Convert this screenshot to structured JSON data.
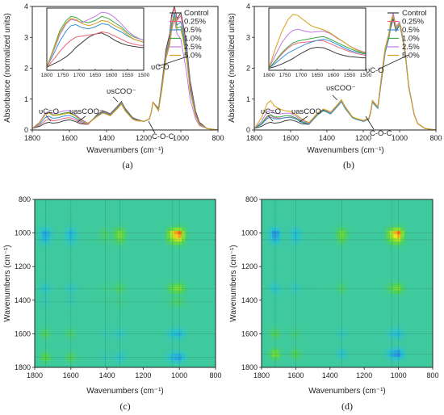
{
  "figure": {
    "captions": [
      "(a)",
      "(b)",
      "(c)",
      "(d)"
    ]
  },
  "colors": {
    "control": "#3c3c3c",
    "s025": "#e8667a",
    "s05": "#3a8fd8",
    "s10": "#39a845",
    "s25": "#c27ae0",
    "s50": "#d8a014"
  },
  "chart_data": [
    {
      "type": "line",
      "panel": "(a)",
      "xlabel": "Wavenumbers (cm⁻¹)",
      "ylabel": "Absorbance (normalized units)",
      "xlim": [
        1800,
        800
      ],
      "ylim": [
        0,
        4
      ],
      "xticks": [
        "1800",
        "1600",
        "1400",
        "1200",
        "1000",
        "800"
      ],
      "yticks": [
        "0",
        "1",
        "2",
        "3",
        "4"
      ],
      "legend": [
        "Control",
        "0.25%",
        "0.5%",
        "1.0%",
        "2.5%",
        "5.0%"
      ],
      "x": [
        1800,
        1760,
        1730,
        1710,
        1690,
        1660,
        1630,
        1600,
        1570,
        1540,
        1500,
        1450,
        1420,
        1400,
        1380,
        1340,
        1320,
        1300,
        1260,
        1240,
        1200,
        1170,
        1160,
        1150,
        1120,
        1100,
        1080,
        1060,
        1050,
        1035,
        1020,
        1000,
        990,
        970,
        950,
        920,
        900,
        860,
        800
      ],
      "series": [
        {
          "name": "Control",
          "values": [
            0.05,
            0.12,
            0.22,
            0.25,
            0.22,
            0.24,
            0.3,
            0.33,
            0.28,
            0.2,
            0.18,
            0.5,
            0.62,
            0.58,
            0.52,
            0.78,
            0.92,
            0.7,
            0.4,
            0.35,
            0.28,
            0.35,
            0.55,
            0.9,
            0.7,
            1.6,
            2.6,
            3.1,
            3.7,
            4.0,
            3.6,
            3.8,
            3.5,
            2.8,
            1.6,
            0.6,
            0.25,
            0.05,
            0.0
          ]
        },
        {
          "name": "0.25%",
          "values": [
            0.05,
            0.16,
            0.3,
            0.35,
            0.3,
            0.32,
            0.38,
            0.4,
            0.34,
            0.24,
            0.18,
            0.48,
            0.6,
            0.56,
            0.5,
            0.76,
            0.9,
            0.68,
            0.38,
            0.33,
            0.28,
            0.35,
            0.55,
            0.9,
            0.68,
            1.55,
            2.5,
            3.0,
            3.6,
            3.95,
            3.55,
            3.7,
            3.4,
            2.7,
            1.5,
            0.55,
            0.22,
            0.05,
            0.0
          ]
        },
        {
          "name": "0.5%",
          "values": [
            0.05,
            0.2,
            0.4,
            0.45,
            0.38,
            0.4,
            0.45,
            0.47,
            0.4,
            0.28,
            0.2,
            0.47,
            0.58,
            0.54,
            0.49,
            0.74,
            0.88,
            0.66,
            0.37,
            0.32,
            0.28,
            0.35,
            0.55,
            0.9,
            0.66,
            1.5,
            2.45,
            2.9,
            3.4,
            3.8,
            3.4,
            3.5,
            3.25,
            2.6,
            1.4,
            0.5,
            0.2,
            0.05,
            0.0
          ]
        },
        {
          "name": "1.0%",
          "values": [
            0.05,
            0.25,
            0.52,
            0.58,
            0.48,
            0.5,
            0.55,
            0.57,
            0.48,
            0.34,
            0.22,
            0.45,
            0.56,
            0.52,
            0.47,
            0.72,
            0.86,
            0.64,
            0.36,
            0.31,
            0.28,
            0.35,
            0.55,
            0.9,
            0.64,
            1.45,
            2.4,
            2.85,
            3.3,
            3.7,
            3.3,
            3.35,
            3.1,
            2.45,
            1.3,
            0.46,
            0.18,
            0.05,
            0.0
          ]
        },
        {
          "name": "2.5%",
          "values": [
            0.05,
            0.26,
            0.55,
            0.6,
            0.52,
            0.56,
            0.62,
            0.63,
            0.52,
            0.36,
            0.22,
            0.44,
            0.55,
            0.51,
            0.46,
            0.7,
            0.84,
            0.62,
            0.35,
            0.3,
            0.28,
            0.35,
            0.55,
            0.9,
            0.62,
            1.4,
            2.3,
            2.75,
            3.2,
            3.6,
            3.1,
            2.95,
            2.6,
            1.9,
            1.0,
            0.35,
            0.14,
            0.05,
            0.0
          ]
        },
        {
          "name": "5.0%",
          "values": [
            0.05,
            0.24,
            0.5,
            0.55,
            0.47,
            0.48,
            0.52,
            0.54,
            0.46,
            0.32,
            0.21,
            0.44,
            0.55,
            0.51,
            0.46,
            0.7,
            0.84,
            0.62,
            0.35,
            0.3,
            0.28,
            0.35,
            0.55,
            0.9,
            0.62,
            1.4,
            2.35,
            2.8,
            3.25,
            3.65,
            3.25,
            3.25,
            3.0,
            2.35,
            1.25,
            0.45,
            0.17,
            0.05,
            0.0
          ]
        }
      ],
      "inset": {
        "xlim": [
          1800,
          1500
        ],
        "ylim": [
          0,
          0.6
        ],
        "xticks": [
          "1800",
          "1750",
          "1700",
          "1650",
          "1600",
          "1550",
          "1500"
        ],
        "x": [
          1800,
          1780,
          1760,
          1740,
          1725,
          1710,
          1690,
          1670,
          1650,
          1630,
          1610,
          1590,
          1570,
          1550,
          1530,
          1510,
          1500
        ],
        "series": [
          {
            "name": "Control",
            "values": [
              0.03,
              0.06,
              0.09,
              0.13,
              0.17,
              0.22,
              0.27,
              0.32,
              0.35,
              0.36,
              0.33,
              0.29,
              0.26,
              0.24,
              0.23,
              0.22,
              0.22
            ]
          },
          {
            "name": "0.25%",
            "values": [
              0.03,
              0.1,
              0.18,
              0.25,
              0.29,
              0.32,
              0.33,
              0.34,
              0.35,
              0.37,
              0.36,
              0.33,
              0.3,
              0.27,
              0.25,
              0.24,
              0.24
            ]
          },
          {
            "name": "0.5%",
            "values": [
              0.03,
              0.15,
              0.28,
              0.38,
              0.43,
              0.44,
              0.41,
              0.4,
              0.42,
              0.45,
              0.44,
              0.4,
              0.37,
              0.33,
              0.3,
              0.28,
              0.27
            ]
          },
          {
            "name": "1.0%",
            "values": [
              0.03,
              0.2,
              0.38,
              0.48,
              0.52,
              0.51,
              0.47,
              0.46,
              0.48,
              0.52,
              0.5,
              0.46,
              0.42,
              0.36,
              0.32,
              0.3,
              0.29
            ]
          },
          {
            "name": "2.5%",
            "values": [
              0.03,
              0.18,
              0.34,
              0.45,
              0.49,
              0.48,
              0.46,
              0.49,
              0.52,
              0.56,
              0.55,
              0.51,
              0.45,
              0.38,
              0.33,
              0.3,
              0.29
            ]
          },
          {
            "name": "5.0%",
            "values": [
              0.03,
              0.19,
              0.36,
              0.46,
              0.5,
              0.49,
              0.45,
              0.43,
              0.45,
              0.48,
              0.47,
              0.43,
              0.4,
              0.34,
              0.3,
              0.28,
              0.27
            ]
          }
        ]
      },
      "annotations": [
        "υC=O",
        "υasCOO⁻",
        "υsCOO⁻",
        "υC-O",
        "C-O-C"
      ]
    },
    {
      "type": "line",
      "panel": "(b)",
      "xlabel": "Wavenumbers (cm⁻¹)",
      "ylabel": "Absorbance (normalized units)",
      "xlim": [
        1800,
        800
      ],
      "ylim": [
        0,
        4
      ],
      "xticks": [
        "1800",
        "1600",
        "1400",
        "1200",
        "1000",
        "800"
      ],
      "yticks": [
        "0",
        "1",
        "2",
        "3",
        "4"
      ],
      "legend": [
        "Control",
        "0.25%",
        "0.5%",
        "1.0%",
        "2.5%",
        "5.0%"
      ],
      "x": [
        1800,
        1760,
        1730,
        1710,
        1690,
        1660,
        1630,
        1600,
        1570,
        1540,
        1500,
        1450,
        1420,
        1400,
        1380,
        1340,
        1320,
        1300,
        1260,
        1240,
        1200,
        1170,
        1160,
        1150,
        1120,
        1100,
        1080,
        1060,
        1050,
        1035,
        1020,
        1000,
        990,
        970,
        950,
        920,
        900,
        860,
        800
      ],
      "series": [
        {
          "name": "Control",
          "values": [
            0.05,
            0.12,
            0.22,
            0.25,
            0.22,
            0.24,
            0.3,
            0.33,
            0.28,
            0.2,
            0.18,
            0.5,
            0.62,
            0.58,
            0.52,
            0.78,
            0.92,
            0.7,
            0.4,
            0.35,
            0.28,
            0.35,
            0.55,
            0.9,
            0.7,
            1.6,
            2.5,
            2.95,
            3.3,
            3.6,
            3.2,
            3.4,
            3.15,
            2.5,
            1.4,
            0.5,
            0.2,
            0.05,
            0.0
          ]
        },
        {
          "name": "0.25%",
          "values": [
            0.05,
            0.2,
            0.4,
            0.48,
            0.4,
            0.38,
            0.4,
            0.42,
            0.36,
            0.26,
            0.19,
            0.52,
            0.64,
            0.6,
            0.54,
            0.8,
            0.94,
            0.72,
            0.41,
            0.36,
            0.29,
            0.36,
            0.56,
            0.92,
            0.72,
            1.65,
            2.55,
            3.0,
            3.4,
            3.75,
            3.3,
            3.45,
            3.2,
            2.55,
            1.42,
            0.5,
            0.2,
            0.05,
            0.0
          ]
        },
        {
          "name": "0.5%",
          "values": [
            0.05,
            0.18,
            0.36,
            0.42,
            0.36,
            0.36,
            0.4,
            0.41,
            0.35,
            0.25,
            0.19,
            0.5,
            0.62,
            0.58,
            0.52,
            0.78,
            0.92,
            0.7,
            0.4,
            0.35,
            0.28,
            0.35,
            0.55,
            0.9,
            0.7,
            1.6,
            2.5,
            2.95,
            3.35,
            3.7,
            3.25,
            3.4,
            3.15,
            2.5,
            1.4,
            0.5,
            0.2,
            0.05,
            0.0
          ]
        },
        {
          "name": "1.0%",
          "values": [
            0.05,
            0.22,
            0.44,
            0.5,
            0.42,
            0.42,
            0.46,
            0.46,
            0.39,
            0.28,
            0.2,
            0.52,
            0.64,
            0.6,
            0.54,
            0.8,
            0.94,
            0.72,
            0.41,
            0.36,
            0.29,
            0.36,
            0.56,
            0.92,
            0.72,
            1.65,
            2.55,
            3.0,
            3.4,
            3.75,
            3.3,
            3.45,
            3.2,
            2.55,
            1.42,
            0.5,
            0.2,
            0.05,
            0.0
          ]
        },
        {
          "name": "2.5%",
          "values": [
            0.05,
            0.28,
            0.58,
            0.64,
            0.54,
            0.52,
            0.54,
            0.54,
            0.45,
            0.32,
            0.22,
            0.54,
            0.66,
            0.62,
            0.56,
            0.82,
            0.96,
            0.74,
            0.42,
            0.37,
            0.3,
            0.37,
            0.57,
            0.94,
            0.74,
            1.7,
            2.6,
            3.05,
            3.45,
            3.8,
            3.35,
            3.5,
            3.25,
            2.6,
            1.45,
            0.52,
            0.21,
            0.05,
            0.0
          ]
        },
        {
          "name": "5.0%",
          "values": [
            0.05,
            0.4,
            0.85,
            0.95,
            0.78,
            0.68,
            0.62,
            0.6,
            0.5,
            0.36,
            0.24,
            0.56,
            0.68,
            0.64,
            0.58,
            0.84,
            0.98,
            0.76,
            0.43,
            0.38,
            0.31,
            0.38,
            0.58,
            0.96,
            0.76,
            1.75,
            2.65,
            3.1,
            3.5,
            3.7,
            3.3,
            3.45,
            3.2,
            2.55,
            1.42,
            0.5,
            0.2,
            0.05,
            0.0
          ]
        }
      ],
      "inset": {
        "xlim": [
          1800,
          1500
        ],
        "ylim": [
          0,
          1.0
        ],
        "xticks": [
          "1800",
          "1750",
          "1700",
          "1650",
          "1600",
          "1550",
          "1500"
        ],
        "x": [
          1800,
          1780,
          1760,
          1740,
          1725,
          1710,
          1690,
          1670,
          1650,
          1630,
          1610,
          1590,
          1570,
          1550,
          1530,
          1510,
          1500
        ],
        "series": [
          {
            "name": "Control",
            "values": [
              0.03,
              0.06,
              0.1,
              0.15,
              0.19,
              0.24,
              0.3,
              0.35,
              0.37,
              0.36,
              0.32,
              0.27,
              0.24,
              0.22,
              0.21,
              0.2,
              0.2
            ]
          },
          {
            "name": "0.25%",
            "values": [
              0.03,
              0.14,
              0.26,
              0.36,
              0.41,
              0.44,
              0.45,
              0.46,
              0.48,
              0.47,
              0.43,
              0.38,
              0.34,
              0.3,
              0.27,
              0.25,
              0.24
            ]
          },
          {
            "name": "0.5%",
            "values": [
              0.03,
              0.11,
              0.2,
              0.28,
              0.32,
              0.36,
              0.41,
              0.45,
              0.48,
              0.5,
              0.47,
              0.42,
              0.37,
              0.32,
              0.29,
              0.27,
              0.26
            ]
          },
          {
            "name": "1.0%",
            "values": [
              0.03,
              0.15,
              0.28,
              0.38,
              0.44,
              0.47,
              0.49,
              0.51,
              0.53,
              0.54,
              0.5,
              0.45,
              0.4,
              0.35,
              0.31,
              0.28,
              0.27
            ]
          },
          {
            "name": "2.5%",
            "values": [
              0.03,
              0.24,
              0.44,
              0.58,
              0.64,
              0.66,
              0.63,
              0.61,
              0.62,
              0.63,
              0.59,
              0.52,
              0.46,
              0.39,
              0.34,
              0.3,
              0.29
            ]
          },
          {
            "name": "5.0%",
            "values": [
              0.03,
              0.34,
              0.62,
              0.82,
              0.9,
              0.88,
              0.8,
              0.72,
              0.68,
              0.65,
              0.6,
              0.53,
              0.46,
              0.39,
              0.33,
              0.29,
              0.28
            ]
          }
        ]
      },
      "annotations": [
        "υC=O",
        "υasCOO⁻",
        "υsCOO⁻",
        "υC-O",
        "C-O-C"
      ]
    },
    {
      "type": "heatmap",
      "panel": "(c)",
      "xlabel": "Wavenumbers (cm⁻¹)",
      "ylabel": "Wavenumbers (cm⁻¹)",
      "xlim": [
        1800,
        800
      ],
      "ylim": [
        800,
        1800
      ],
      "xticks": [
        "1800",
        "1600",
        "1400",
        "1200",
        "1000",
        "800"
      ],
      "yticks": [
        "800",
        "1000",
        "1200",
        "1400",
        "1600",
        "1800"
      ],
      "bands": [
        1740,
        1600,
        1410,
        1330,
        1040,
        1000
      ],
      "band_weights": [
        -0.55,
        -0.4,
        0.15,
        0.45,
        0.6,
        1.0
      ]
    },
    {
      "type": "heatmap",
      "panel": "(d)",
      "xlabel": "Wavenumbers (cm⁻¹)",
      "ylabel": "Wavenumbers (cm⁻¹)",
      "xlim": [
        1800,
        800
      ],
      "ylim": [
        800,
        1800
      ],
      "xticks": [
        "1800",
        "1600",
        "1400",
        "1200",
        "1000",
        "800"
      ],
      "yticks": [
        "800",
        "1000",
        "1200",
        "1400",
        "1600",
        "1800"
      ],
      "bands": [
        1720,
        1600,
        1330,
        1040,
        1000
      ],
      "band_weights": [
        -0.7,
        -0.35,
        0.4,
        0.55,
        1.0
      ]
    }
  ]
}
